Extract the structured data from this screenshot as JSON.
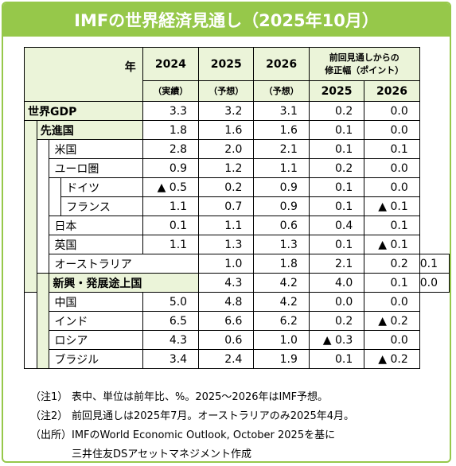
{
  "title": "IMFの世界経済見通し（2025年10月）",
  "header": {
    "corner": "年",
    "years": [
      "2024",
      "2025",
      "2026"
    ],
    "subs": [
      "（実績）",
      "（予想）",
      "（予想）"
    ],
    "revision_title_line1": "前回見通しからの",
    "revision_title_line2": "修正幅（ポイント）",
    "revision_years": [
      "2025",
      "2026"
    ]
  },
  "rows": [
    {
      "name": "世界GDP",
      "v2024": "3.3",
      "v2025": "3.2",
      "v2026": "3.1",
      "r2025": "0.2",
      "r2026": "0.0"
    },
    {
      "name": "先進国",
      "v2024": "1.8",
      "v2025": "1.6",
      "v2026": "1.6",
      "r2025": "0.1",
      "r2026": "0.0"
    },
    {
      "name": "米国",
      "v2024": "2.8",
      "v2025": "2.0",
      "v2026": "2.1",
      "r2025": "0.1",
      "r2026": "0.1"
    },
    {
      "name": "ユーロ圏",
      "v2024": "0.9",
      "v2025": "1.2",
      "v2026": "1.1",
      "r2025": "0.2",
      "r2026": "0.0"
    },
    {
      "name": "ドイツ",
      "v2024": "▲ 0.5",
      "v2025": "0.2",
      "v2026": "0.9",
      "r2025": "0.1",
      "r2026": "0.0"
    },
    {
      "name": "フランス",
      "v2024": "1.1",
      "v2025": "0.7",
      "v2026": "0.9",
      "r2025": "0.1",
      "r2026": "▲ 0.1"
    },
    {
      "name": "日本",
      "v2024": "0.1",
      "v2025": "1.1",
      "v2026": "0.6",
      "r2025": "0.4",
      "r2026": "0.1"
    },
    {
      "name": "英国",
      "v2024": "1.1",
      "v2025": "1.3",
      "v2026": "1.3",
      "r2025": "0.1",
      "r2026": "▲ 0.1"
    },
    {
      "name": "オーストラリア",
      "v2024": "1.0",
      "v2025": "1.8",
      "v2026": "2.1",
      "r2025": "0.2",
      "r2026": "0.1"
    },
    {
      "name": "新興・発展途上国",
      "v2024": "4.3",
      "v2025": "4.2",
      "v2026": "4.0",
      "r2025": "0.1",
      "r2026": "0.0"
    },
    {
      "name": "中国",
      "v2024": "5.0",
      "v2025": "4.8",
      "v2026": "4.2",
      "r2025": "0.0",
      "r2026": "0.0"
    },
    {
      "name": "インド",
      "v2024": "6.5",
      "v2025": "6.6",
      "v2026": "6.2",
      "r2025": "0.2",
      "r2026": "▲ 0.2"
    },
    {
      "name": "ロシア",
      "v2024": "4.3",
      "v2025": "0.6",
      "v2026": "1.0",
      "r2025": "▲ 0.3",
      "r2026": "0.0"
    },
    {
      "name": "ブラジル",
      "v2024": "3.4",
      "v2025": "2.4",
      "v2026": "1.9",
      "r2025": "0.1",
      "r2026": "▲ 0.2"
    }
  ],
  "notes": {
    "n1_tag": "（注1）",
    "n1_text": "表中、単位は前年比、%。2025～2026年はIMF予想。",
    "n2_tag": "（注2）",
    "n2_text": "前回見通しは2025年7月。オーストラリアのみ2025年4月。",
    "n3_tag": "（出所）",
    "n3_text": "IMFのWorld Economic Outlook, October 2025を基に",
    "n3_text2": "三井住友DSアセットマネジメント作成"
  },
  "colors": {
    "accent": "#96c84a",
    "header_bg": "#ebf4d9"
  }
}
